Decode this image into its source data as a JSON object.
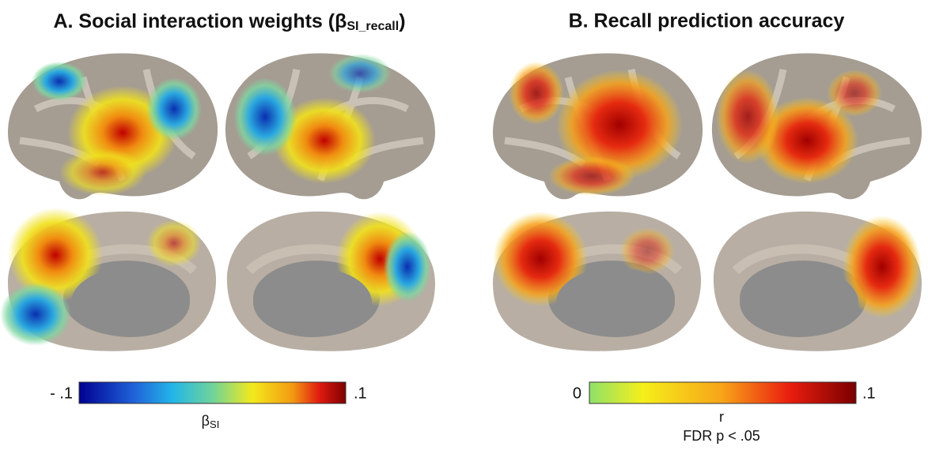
{
  "panels": [
    {
      "title": {
        "text": "A. Social interaction weights (β",
        "subscript": "SI_recall",
        "close": ")"
      },
      "colorbar": {
        "min_label": "- .1",
        "max_label": ".1",
        "label": "β",
        "label_subscript": "SI"
      }
    },
    {
      "title": {
        "text": "B. Recall prediction accuracy"
      },
      "colorbar": {
        "min_label": "0",
        "max_label": ".1",
        "label": "r",
        "note": "FDR p < .05"
      }
    }
  ]
}
